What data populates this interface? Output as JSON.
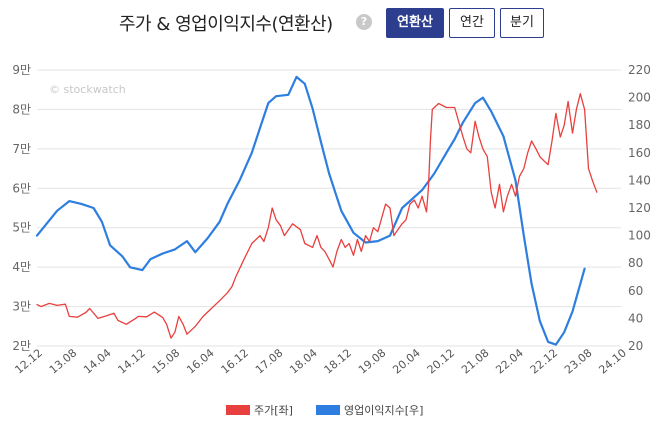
{
  "header": {
    "title": "주가 & 영업이익지수(연환산)",
    "help": "?",
    "tabs": [
      {
        "label": "연환산",
        "active": true
      },
      {
        "label": "연간",
        "active": false
      },
      {
        "label": "분기",
        "active": false
      }
    ]
  },
  "watermark": "© stockwatch",
  "colors": {
    "stock": "#e8403f",
    "earnings": "#2d7ee0",
    "grid": "#e3e3e3"
  },
  "chart_data": {
    "type": "line",
    "title": "",
    "grid": true,
    "legend_position": "bottom",
    "x_ticks": [
      "12.12",
      "13.08",
      "14.04",
      "14.12",
      "15.08",
      "16.04",
      "16.12",
      "17.08",
      "18.04",
      "18.12",
      "19.08",
      "20.04",
      "20.12",
      "21.08",
      "22.04",
      "22.12",
      "23.08",
      "24.10"
    ],
    "x_domain": [
      2012.917,
      2024.917
    ],
    "y_left": {
      "ticks": [
        "2만",
        "3만",
        "4만",
        "5만",
        "6만",
        "7만",
        "8만",
        "9만"
      ],
      "min": 20000,
      "max": 90000
    },
    "y_right": {
      "ticks": [
        "20",
        "40",
        "60",
        "80",
        "100",
        "120",
        "140",
        "160",
        "180",
        "200",
        "220"
      ],
      "min": 20,
      "max": 220
    },
    "series": [
      {
        "name": "주가[좌]",
        "axis": "left",
        "points": [
          [
            2012.917,
            30500
          ],
          [
            2013.0,
            30000
          ],
          [
            2013.17,
            30800
          ],
          [
            2013.33,
            30300
          ],
          [
            2013.5,
            30600
          ],
          [
            2013.58,
            27500
          ],
          [
            2013.75,
            27300
          ],
          [
            2013.92,
            28500
          ],
          [
            2014.0,
            29500
          ],
          [
            2014.17,
            27000
          ],
          [
            2014.33,
            27600
          ],
          [
            2014.5,
            28300
          ],
          [
            2014.58,
            26500
          ],
          [
            2014.75,
            25500
          ],
          [
            2014.92,
            26800
          ],
          [
            2015.0,
            27500
          ],
          [
            2015.17,
            27400
          ],
          [
            2015.33,
            28600
          ],
          [
            2015.5,
            27200
          ],
          [
            2015.58,
            25500
          ],
          [
            2015.67,
            22000
          ],
          [
            2015.75,
            23500
          ],
          [
            2015.83,
            27500
          ],
          [
            2015.92,
            25500
          ],
          [
            2016.0,
            23000
          ],
          [
            2016.17,
            25000
          ],
          [
            2016.33,
            27500
          ],
          [
            2016.5,
            29500
          ],
          [
            2016.67,
            31500
          ],
          [
            2016.83,
            33500
          ],
          [
            2016.92,
            35000
          ],
          [
            2017.0,
            37500
          ],
          [
            2017.17,
            42000
          ],
          [
            2017.33,
            46000
          ],
          [
            2017.5,
            48000
          ],
          [
            2017.58,
            46500
          ],
          [
            2017.67,
            50000
          ],
          [
            2017.75,
            55000
          ],
          [
            2017.83,
            52000
          ],
          [
            2017.92,
            50500
          ],
          [
            2018.0,
            48000
          ],
          [
            2018.17,
            51000
          ],
          [
            2018.33,
            49500
          ],
          [
            2018.42,
            46000
          ],
          [
            2018.58,
            45000
          ],
          [
            2018.67,
            48000
          ],
          [
            2018.75,
            45000
          ],
          [
            2018.83,
            44000
          ],
          [
            2018.92,
            42000
          ],
          [
            2019.0,
            40000
          ],
          [
            2019.08,
            44000
          ],
          [
            2019.17,
            47000
          ],
          [
            2019.25,
            45000
          ],
          [
            2019.33,
            46000
          ],
          [
            2019.42,
            43000
          ],
          [
            2019.5,
            47000
          ],
          [
            2019.58,
            44000
          ],
          [
            2019.67,
            48000
          ],
          [
            2019.75,
            46500
          ],
          [
            2019.83,
            50000
          ],
          [
            2019.92,
            49000
          ],
          [
            2020.0,
            52500
          ],
          [
            2020.08,
            56000
          ],
          [
            2020.17,
            55000
          ],
          [
            2020.25,
            48000
          ],
          [
            2020.33,
            49500
          ],
          [
            2020.42,
            51000
          ],
          [
            2020.5,
            52000
          ],
          [
            2020.58,
            56000
          ],
          [
            2020.67,
            57000
          ],
          [
            2020.75,
            55000
          ],
          [
            2020.83,
            58000
          ],
          [
            2020.92,
            54000
          ],
          [
            2020.96,
            60000
          ],
          [
            2021.0,
            72000
          ],
          [
            2021.04,
            80000
          ],
          [
            2021.17,
            81500
          ],
          [
            2021.33,
            80500
          ],
          [
            2021.5,
            80500
          ],
          [
            2021.67,
            73000
          ],
          [
            2021.75,
            70000
          ],
          [
            2021.83,
            69000
          ],
          [
            2021.92,
            77000
          ],
          [
            2022.0,
            73000
          ],
          [
            2022.08,
            70000
          ],
          [
            2022.17,
            68000
          ],
          [
            2022.25,
            59000
          ],
          [
            2022.33,
            55000
          ],
          [
            2022.42,
            61000
          ],
          [
            2022.5,
            54000
          ],
          [
            2022.58,
            58000
          ],
          [
            2022.67,
            61000
          ],
          [
            2022.75,
            58000
          ],
          [
            2022.83,
            63000
          ],
          [
            2022.92,
            65000
          ],
          [
            2023.0,
            69000
          ],
          [
            2023.08,
            72000
          ],
          [
            2023.17,
            70000
          ],
          [
            2023.25,
            68000
          ],
          [
            2023.33,
            67000
          ],
          [
            2023.42,
            66000
          ],
          [
            2023.5,
            72000
          ],
          [
            2023.58,
            79000
          ],
          [
            2023.67,
            73000
          ],
          [
            2023.75,
            76000
          ],
          [
            2023.83,
            82000
          ],
          [
            2023.92,
            74000
          ],
          [
            2024.0,
            80000
          ],
          [
            2024.08,
            84000
          ],
          [
            2024.17,
            80000
          ],
          [
            2024.25,
            65000
          ],
          [
            2024.33,
            62000
          ],
          [
            2024.42,
            59000
          ]
        ]
      },
      {
        "name": "영업이익지수[우]",
        "axis": "right",
        "points": [
          [
            2012.917,
            100
          ],
          [
            2013.33,
            118
          ],
          [
            2013.58,
            125
          ],
          [
            2013.83,
            123
          ],
          [
            2014.08,
            120
          ],
          [
            2014.25,
            110
          ],
          [
            2014.42,
            93
          ],
          [
            2014.67,
            85
          ],
          [
            2014.83,
            77
          ],
          [
            2015.08,
            75
          ],
          [
            2015.25,
            83
          ],
          [
            2015.5,
            87
          ],
          [
            2015.75,
            90
          ],
          [
            2016.0,
            96
          ],
          [
            2016.17,
            88
          ],
          [
            2016.42,
            98
          ],
          [
            2016.67,
            110
          ],
          [
            2016.83,
            123
          ],
          [
            2017.08,
            140
          ],
          [
            2017.33,
            160
          ],
          [
            2017.5,
            178
          ],
          [
            2017.67,
            196
          ],
          [
            2017.83,
            201
          ],
          [
            2018.08,
            202
          ],
          [
            2018.25,
            215
          ],
          [
            2018.42,
            210
          ],
          [
            2018.58,
            192
          ],
          [
            2018.75,
            168
          ],
          [
            2018.92,
            145
          ],
          [
            2019.17,
            118
          ],
          [
            2019.42,
            102
          ],
          [
            2019.67,
            95
          ],
          [
            2019.92,
            96
          ],
          [
            2020.17,
            100
          ],
          [
            2020.42,
            120
          ],
          [
            2020.58,
            125
          ],
          [
            2020.83,
            133
          ],
          [
            2021.08,
            145
          ],
          [
            2021.33,
            160
          ],
          [
            2021.5,
            170
          ],
          [
            2021.67,
            182
          ],
          [
            2021.92,
            196
          ],
          [
            2022.08,
            200
          ],
          [
            2022.25,
            190
          ],
          [
            2022.5,
            172
          ],
          [
            2022.75,
            140
          ],
          [
            2022.92,
            100
          ],
          [
            2023.08,
            65
          ],
          [
            2023.25,
            38
          ],
          [
            2023.42,
            23
          ],
          [
            2023.58,
            21
          ],
          [
            2023.75,
            30
          ],
          [
            2023.92,
            45
          ],
          [
            2024.0,
            55
          ],
          [
            2024.17,
            76
          ]
        ]
      }
    ]
  }
}
